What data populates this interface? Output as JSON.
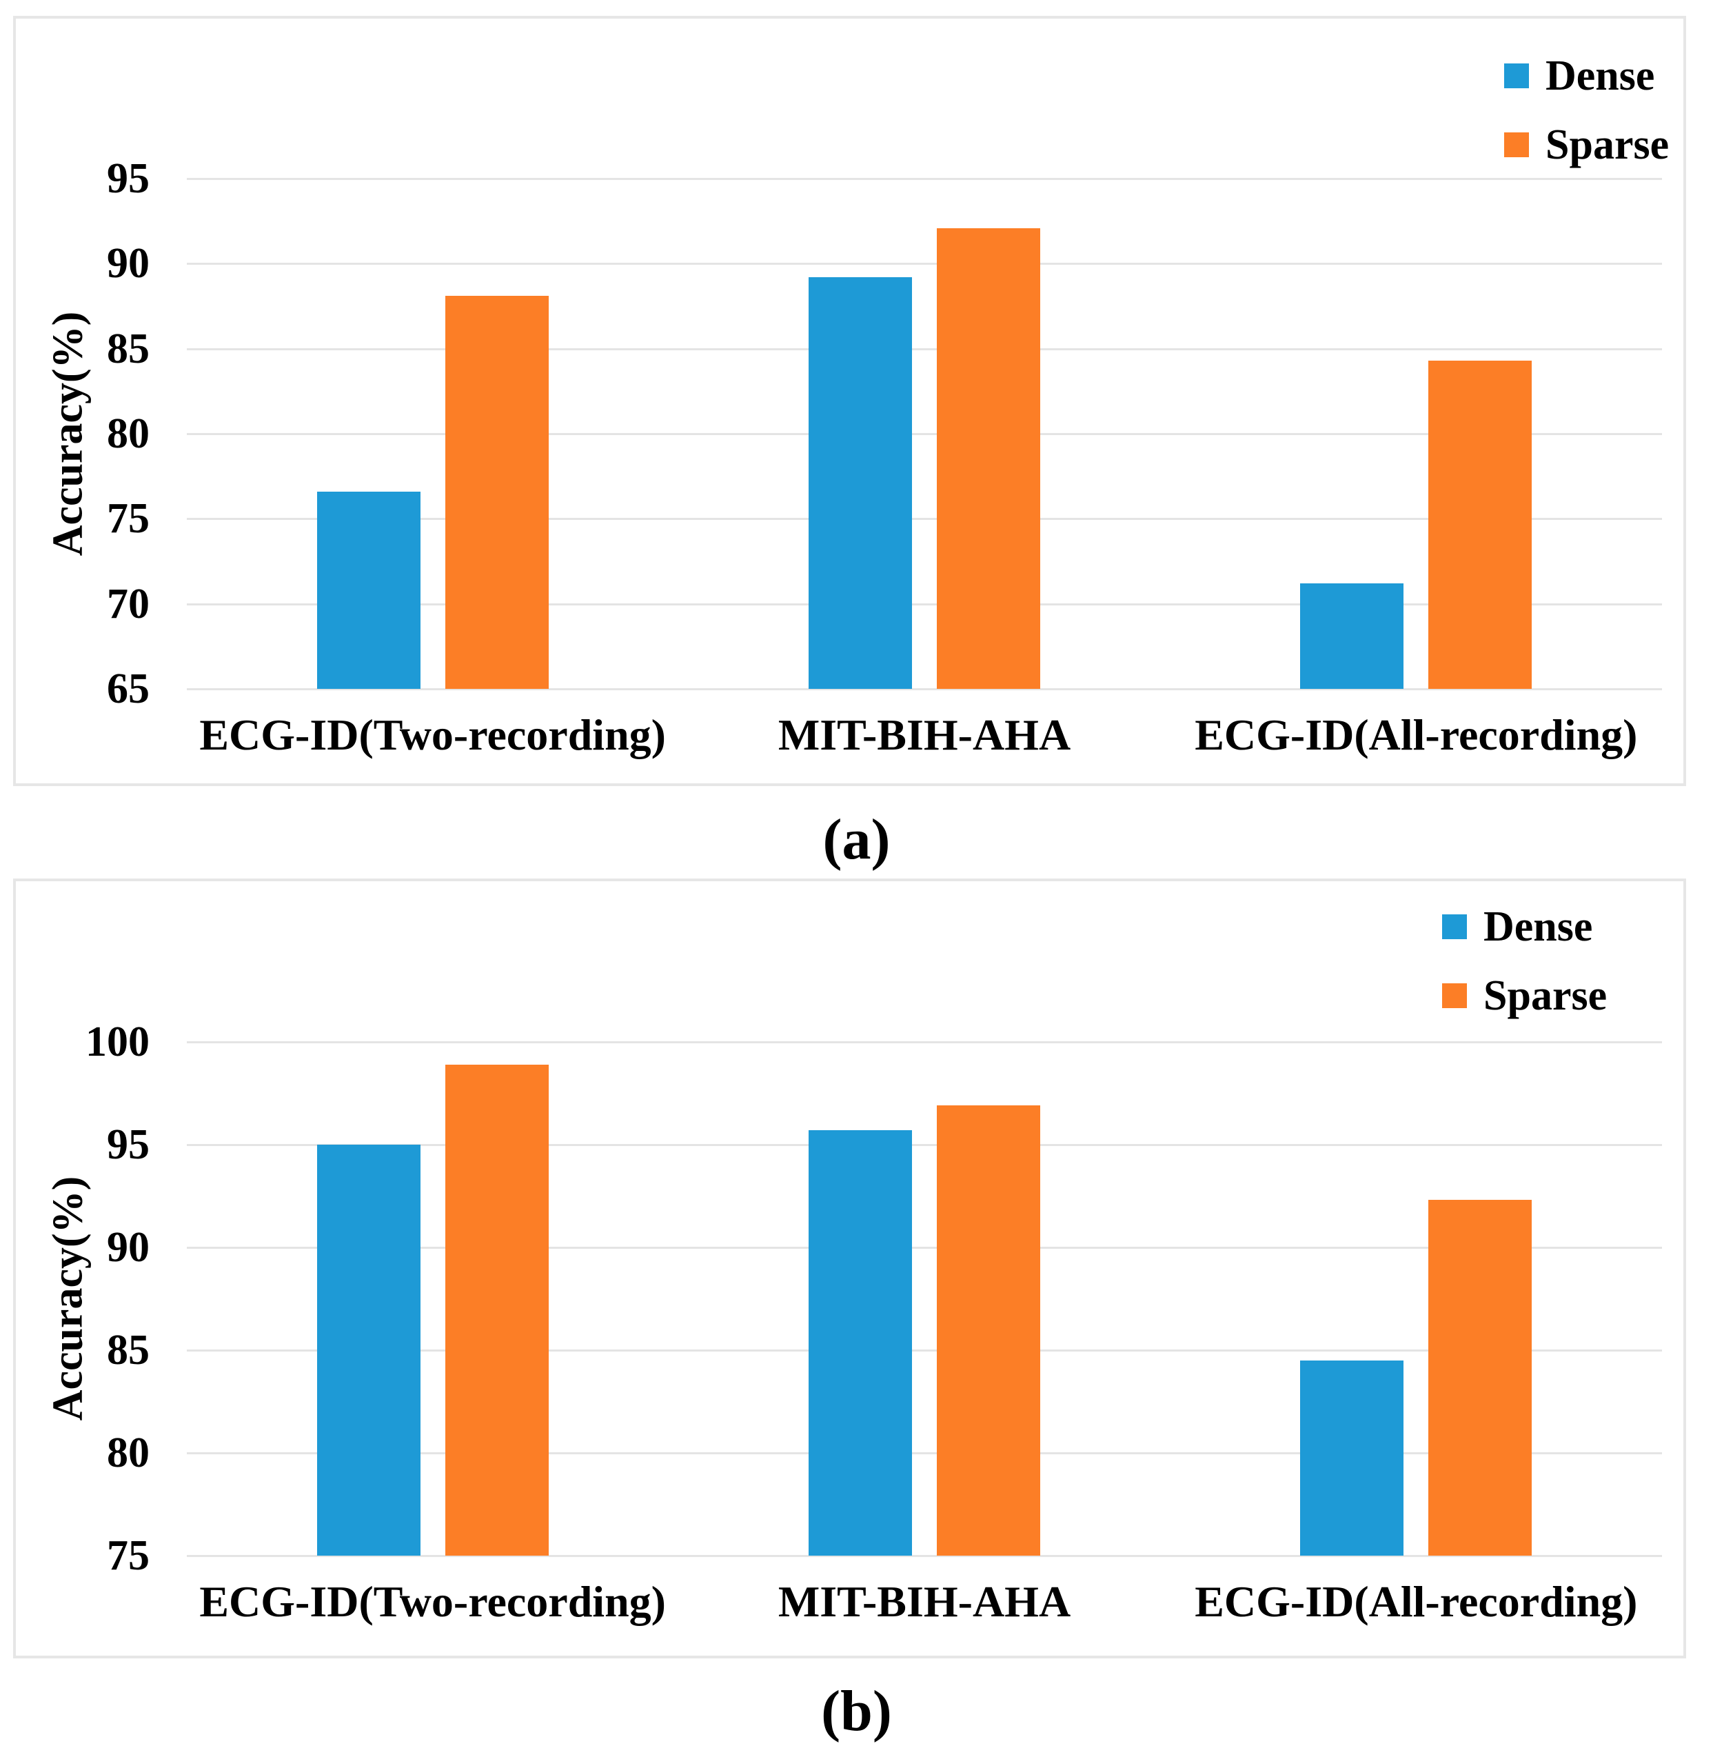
{
  "figure": {
    "background": "#ffffff",
    "series_colors": {
      "Dense": "#1e9ad6",
      "Sparse": "#fc7e26"
    }
  },
  "chart_data": [
    {
      "type": "bar",
      "caption": "(a)",
      "title": "",
      "xlabel": "",
      "ylabel": "Accuracy(%)",
      "categories": [
        "ECG-ID(Two-recording)",
        "MIT-BIH-AHA",
        "ECG-ID(All-recording)"
      ],
      "series": [
        {
          "name": "Dense",
          "color": "#1e9ad6",
          "values": [
            76.6,
            89.2,
            71.2
          ]
        },
        {
          "name": "Sparse",
          "color": "#fc7e26",
          "values": [
            88.1,
            92.1,
            84.3
          ]
        }
      ],
      "ylim": [
        65,
        95
      ],
      "yticks": [
        65,
        70,
        75,
        80,
        85,
        90,
        95
      ],
      "grid": true,
      "legend_position": "top-right"
    },
    {
      "type": "bar",
      "caption": "(b)",
      "title": "",
      "xlabel": "",
      "ylabel": "Accuracy(%)",
      "categories": [
        "ECG-ID(Two-recording)",
        "MIT-BIH-AHA",
        "ECG-ID(All-recording)"
      ],
      "series": [
        {
          "name": "Dense",
          "color": "#1e9ad6",
          "values": [
            95.0,
            95.7,
            84.5
          ]
        },
        {
          "name": "Sparse",
          "color": "#fc7e26",
          "values": [
            98.9,
            96.9,
            92.3
          ]
        }
      ],
      "ylim": [
        75,
        100
      ],
      "yticks": [
        75,
        80,
        85,
        90,
        95,
        100
      ],
      "grid": true,
      "legend_position": "top-right"
    }
  ]
}
